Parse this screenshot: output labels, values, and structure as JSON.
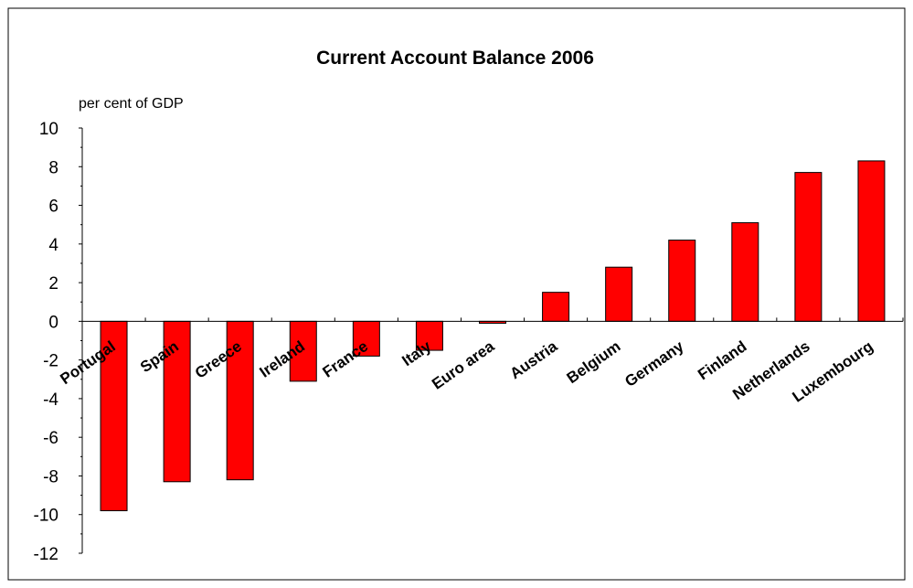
{
  "chart_data": {
    "type": "bar",
    "title": "Current Account Balance 2006",
    "ylabel": "per cent of GDP",
    "xlabel": "",
    "categories": [
      "Portugal",
      "Spain",
      "Greece",
      "Ireland",
      "France",
      "Italy",
      "Euro area",
      "Austria",
      "Belgium",
      "Germany",
      "Finland",
      "Netherlands",
      "Luxembourg"
    ],
    "values": [
      -9.8,
      -8.3,
      -8.2,
      -3.1,
      -1.8,
      -1.5,
      -0.1,
      1.5,
      2.8,
      4.2,
      5.1,
      7.7,
      8.3
    ],
    "ylim": [
      -12,
      10
    ],
    "yticks": [
      "10",
      "8",
      "6",
      "4",
      "2",
      "0",
      "-2",
      "-4",
      "-6",
      "-8",
      "-10",
      "-12"
    ],
    "grid": false,
    "bar_color": "#ff0000"
  }
}
